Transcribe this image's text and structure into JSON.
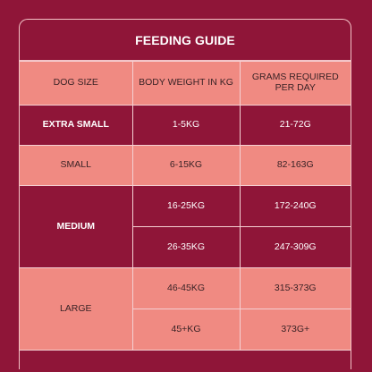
{
  "title": "FEEDING GUIDE",
  "headers": [
    "DOG SIZE",
    "BODY WEIGHT IN KG",
    "GRAMS REQUIRED PER DAY"
  ],
  "rows": [
    {
      "size": "EXTRA SMALL",
      "weight": "1-5KG",
      "grams": "21-72G"
    },
    {
      "size": "SMALL",
      "weight": "6-15KG",
      "grams": "82-163G"
    },
    {
      "size": "MEDIUM",
      "weight": "16-25KG",
      "grams": "172-240G"
    },
    {
      "size": "",
      "weight": "26-35KG",
      "grams": "247-309G"
    },
    {
      "size": "LARGE",
      "weight": "46-45KG",
      "grams": "315-373G"
    },
    {
      "size": "",
      "weight": "45+KG",
      "grams": "373G+"
    }
  ],
  "colors": {
    "background": "#8f1538",
    "accent": "#f08a82",
    "border": "#f5d0d3"
  }
}
